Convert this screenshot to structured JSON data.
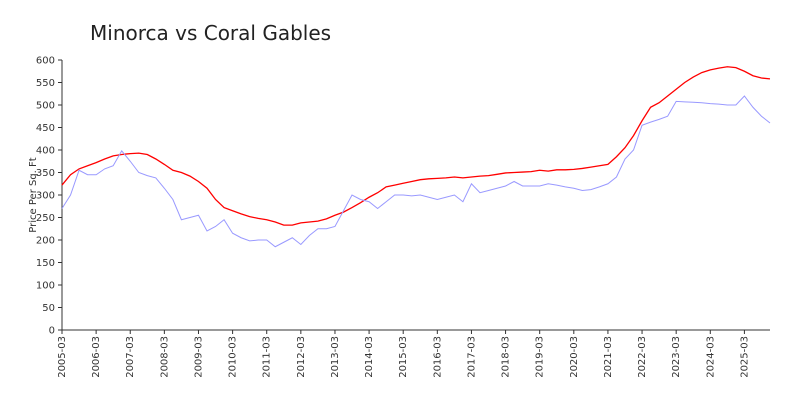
{
  "chart_data": {
    "type": "line",
    "title": "Minorca vs Coral Gables",
    "y_label": "Price Per Sq. Ft",
    "x": [
      "2005-03",
      "2005-06",
      "2005-09",
      "2005-12",
      "2006-03",
      "2006-06",
      "2006-09",
      "2006-12",
      "2007-03",
      "2007-06",
      "2007-09",
      "2007-12",
      "2008-03",
      "2008-06",
      "2008-09",
      "2008-12",
      "2009-03",
      "2009-06",
      "2009-09",
      "2009-12",
      "2010-03",
      "2010-06",
      "2010-09",
      "2010-12",
      "2011-03",
      "2011-06",
      "2011-09",
      "2011-12",
      "2012-03",
      "2012-06",
      "2012-09",
      "2012-12",
      "2013-03",
      "2013-06",
      "2013-09",
      "2013-12",
      "2014-03",
      "2014-06",
      "2014-09",
      "2014-12",
      "2015-03",
      "2015-06",
      "2015-09",
      "2015-12",
      "2016-03",
      "2016-06",
      "2016-09",
      "2016-12",
      "2017-03",
      "2017-06",
      "2017-09",
      "2017-12",
      "2018-03",
      "2018-06",
      "2018-09",
      "2018-12",
      "2019-03",
      "2019-06",
      "2019-09",
      "2019-12",
      "2020-03",
      "2020-06",
      "2020-09",
      "2020-12",
      "2021-03",
      "2021-06",
      "2021-09",
      "2021-12",
      "2022-03",
      "2022-06",
      "2022-09",
      "2022-12",
      "2023-03",
      "2023-06",
      "2023-09",
      "2023-12",
      "2024-03",
      "2024-06",
      "2024-09",
      "2024-12",
      "2025-03",
      "2025-06",
      "2025-09",
      "2025-12"
    ],
    "series": [
      {
        "color": "#ff0000",
        "values": [
          322,
          345,
          358,
          365,
          372,
          380,
          387,
          390,
          392,
          393,
          390,
          380,
          368,
          355,
          350,
          342,
          330,
          315,
          290,
          272,
          265,
          258,
          252,
          248,
          245,
          240,
          233,
          233,
          238,
          240,
          242,
          247,
          255,
          262,
          272,
          283,
          295,
          305,
          318,
          322,
          326,
          330,
          334,
          336,
          337,
          338,
          340,
          338,
          340,
          342,
          343,
          346,
          349,
          350,
          351,
          352,
          355,
          353,
          356,
          356,
          357,
          359,
          362,
          365,
          368,
          385,
          405,
          432,
          465,
          495,
          505,
          520,
          535,
          550,
          562,
          572,
          578,
          582,
          585,
          583,
          575,
          565,
          560,
          558
        ]
      },
      {
        "color": "#9999ff",
        "values": [
          270,
          300,
          355,
          345,
          345,
          358,
          365,
          398,
          375,
          350,
          343,
          338,
          315,
          290,
          245,
          250,
          255,
          220,
          230,
          245,
          215,
          205,
          198,
          200,
          200,
          185,
          195,
          205,
          190,
          210,
          225,
          225,
          230,
          265,
          300,
          290,
          285,
          270,
          285,
          300,
          300,
          298,
          300,
          295,
          290,
          295,
          300,
          285,
          325,
          305,
          310,
          315,
          320,
          330,
          320,
          320,
          320,
          325,
          322,
          318,
          315,
          310,
          312,
          318,
          325,
          340,
          380,
          400,
          455,
          462,
          468,
          475,
          508,
          507,
          506,
          505,
          503,
          502,
          500,
          500,
          520,
          495,
          475,
          460
        ]
      }
    ],
    "xlim": [
      "2005-03",
      "2025-12"
    ],
    "xticks": [
      "2005-03",
      "2006-03",
      "2007-03",
      "2008-03",
      "2009-03",
      "2010-03",
      "2011-03",
      "2012-03",
      "2013-03",
      "2014-03",
      "2015-03",
      "2016-03",
      "2017-03",
      "2018-03",
      "2019-03",
      "2020-03",
      "2021-03",
      "2022-03",
      "2023-03",
      "2024-03",
      "2025-03"
    ],
    "ylim": [
      0,
      600
    ],
    "yticks": [
      0,
      50,
      100,
      150,
      200,
      250,
      300,
      350,
      400,
      450,
      500,
      550,
      600
    ]
  }
}
